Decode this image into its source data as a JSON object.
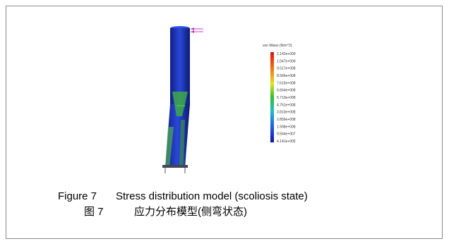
{
  "figure": {
    "legend": {
      "title": "von Mises (N/m^2)",
      "labels": [
        "1.142e+009",
        "1.047e+009",
        "9.517e+008",
        "8.566e+008",
        "7.615e+008",
        "6.664e+008",
        "5.713e+008",
        "4.761e+008",
        "3.810e+008",
        "2.859e+008",
        "1.908e+008",
        "9.564e+007",
        "4.141e+005"
      ]
    },
    "caption": {
      "en_label": "Figure 7",
      "en_text": "Stress distribution model (scoliosis state)",
      "zh_label": "图 7",
      "zh_text": "应力分布模型(侧弯状态)"
    }
  }
}
